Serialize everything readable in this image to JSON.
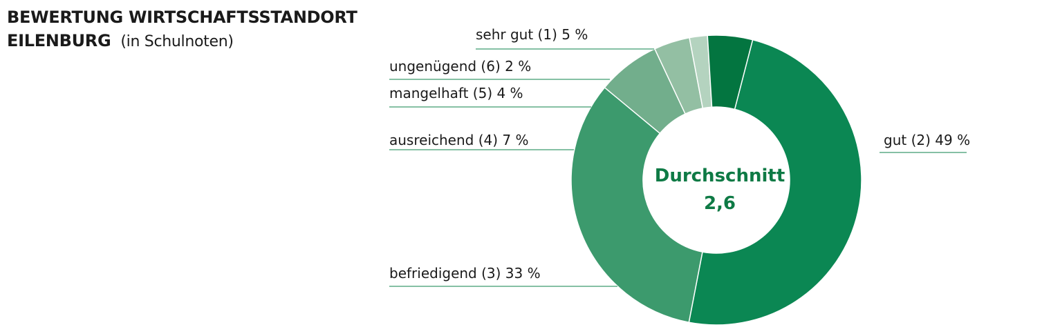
{
  "header": {
    "title_line1": "BEWERTUNG WIRTSCHAFTSSTANDORT",
    "title_line2": "EILENBURG",
    "subtitle": "(in Schulnoten)"
  },
  "center": {
    "label": "Durchschnitt",
    "value": "2,6"
  },
  "chart_data": {
    "type": "pie",
    "variant": "donut",
    "title": "BEWERTUNG WIRTSCHAFTSSTANDORT EILENBURG (in Schulnoten)",
    "unit": "%",
    "slices": [
      {
        "name": "gut (2)",
        "label": "gut (2) 49 %",
        "value": 49,
        "color": "#0b8753"
      },
      {
        "name": "befriedigend (3)",
        "label": "befriedigend (3) 33 %",
        "value": 33,
        "color": "#3c9a6d"
      },
      {
        "name": "ausreichend (4)",
        "label": "ausreichend (4) 7 %",
        "value": 7,
        "color": "#72ae8c"
      },
      {
        "name": "mangelhaft (5)",
        "label": "mangelhaft (5) 4 %",
        "value": 4,
        "color": "#93bfa3"
      },
      {
        "name": "ungenügend (6)",
        "label": "ungenügend (6) 2 %",
        "value": 2,
        "color": "#b4d3bf"
      },
      {
        "name": "sehr gut (1)",
        "label": "sehr gut (1) 5 %",
        "value": 5,
        "color": "#037540"
      }
    ],
    "legend": "none",
    "leader_line_color": "#3c9a6d"
  }
}
